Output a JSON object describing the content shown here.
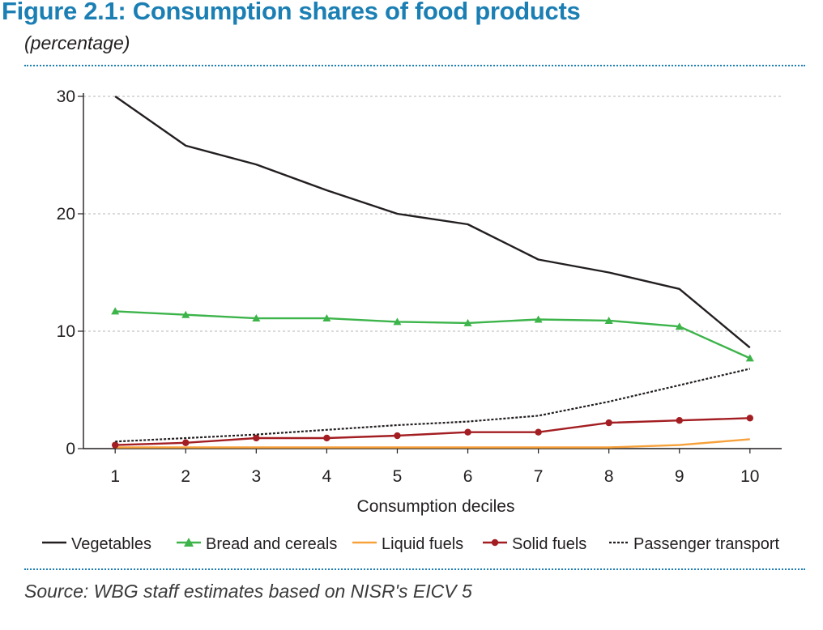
{
  "figure": {
    "title": "Figure 2.1: Consumption shares of food products",
    "subtitle": "(percentage)",
    "source": "Source: WBG staff estimates based on NISR's EICV 5"
  },
  "colors": {
    "title": "#1b7fb4",
    "vegetables": "#231f20",
    "bread": "#3cb44a",
    "liquid": "#f7a13b",
    "solid": "#a31e22",
    "transport": "#231f20"
  },
  "chart_data": {
    "type": "line",
    "title": "Consumption shares of food products",
    "xlabel": "Consumption deciles",
    "ylabel": "",
    "x": [
      1,
      2,
      3,
      4,
      5,
      6,
      7,
      8,
      9,
      10
    ],
    "ylim": [
      0,
      30
    ],
    "yticks": [
      0,
      10,
      20,
      30
    ],
    "grid": true,
    "legend_position": "bottom",
    "series": [
      {
        "name": "Vegetables",
        "style": "solid",
        "marker": "none",
        "values": [
          30.0,
          25.8,
          24.2,
          22.0,
          20.0,
          19.1,
          16.1,
          15.0,
          13.6,
          8.6
        ]
      },
      {
        "name": "Bread and cereals",
        "style": "solid",
        "marker": "triangle",
        "values": [
          11.7,
          11.4,
          11.1,
          11.1,
          10.8,
          10.7,
          11.0,
          10.9,
          10.4,
          7.7
        ]
      },
      {
        "name": "Liquid fuels",
        "style": "solid",
        "marker": "none",
        "values": [
          0.1,
          0.1,
          0.1,
          0.1,
          0.1,
          0.1,
          0.1,
          0.1,
          0.3,
          0.8
        ]
      },
      {
        "name": "Solid fuels",
        "style": "solid",
        "marker": "circle",
        "values": [
          0.3,
          0.5,
          0.9,
          0.9,
          1.1,
          1.4,
          1.4,
          2.2,
          2.4,
          2.6
        ]
      },
      {
        "name": "Passenger transport",
        "style": "dotted",
        "marker": "none",
        "values": [
          0.6,
          0.9,
          1.2,
          1.6,
          2.0,
          2.3,
          2.8,
          4.0,
          5.4,
          6.8
        ]
      }
    ]
  }
}
